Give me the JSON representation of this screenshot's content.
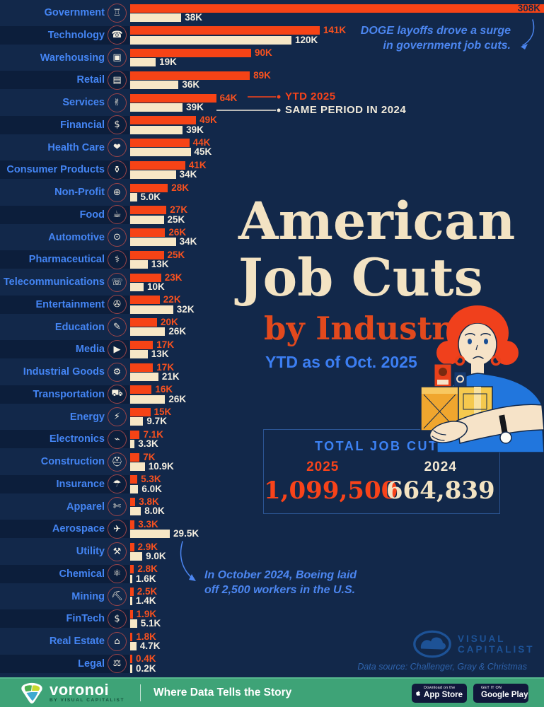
{
  "chart_data": {
    "type": "bar",
    "title": "American Job Cuts by Industry",
    "subtitle": "YTD as of Oct. 2025",
    "unit": "job cuts (thousands)",
    "orientation": "horizontal",
    "series_names": [
      "YTD 2025",
      "Same period in 2024"
    ],
    "rows": [
      {
        "label": "Government",
        "icon_name": "bank-building-icon",
        "glyph": "♖",
        "v2025": 308,
        "l2025": "308K",
        "v2024": 38,
        "l2024": "38K",
        "inside2025": true
      },
      {
        "label": "Technology",
        "icon_name": "smartphone-icon",
        "glyph": "☎",
        "v2025": 141,
        "l2025": "141K",
        "v2024": 120,
        "l2024": "120K"
      },
      {
        "label": "Warehousing",
        "icon_name": "open-box-icon",
        "glyph": "▣",
        "v2025": 90,
        "l2025": "90K",
        "v2024": 19,
        "l2024": "19K"
      },
      {
        "label": "Retail",
        "icon_name": "shopping-cart-icon",
        "glyph": "▤",
        "v2025": 89,
        "l2025": "89K",
        "v2024": 36,
        "l2024": "36K"
      },
      {
        "label": "Services",
        "icon_name": "helping-hand-icon",
        "glyph": "✌",
        "v2025": 64,
        "l2025": "64K",
        "v2024": 39,
        "l2024": "39K"
      },
      {
        "label": "Financial",
        "icon_name": "dollar-coin-icon",
        "glyph": "$",
        "v2025": 49,
        "l2025": "49K",
        "v2024": 39,
        "l2024": "39K"
      },
      {
        "label": "Health Care",
        "icon_name": "heart-cross-icon",
        "glyph": "❤",
        "v2025": 44,
        "l2025": "44K",
        "v2024": 45,
        "l2024": "45K"
      },
      {
        "label": "Consumer Products",
        "icon_name": "shopping-bag-icon",
        "glyph": "⚱",
        "v2025": 41,
        "l2025": "41K",
        "v2024": 34,
        "l2024": "34K"
      },
      {
        "label": "Non-Profit",
        "icon_name": "globe-icon",
        "glyph": "⊕",
        "v2025": 28,
        "l2025": "28K",
        "v2024": 5.0,
        "l2024": "5.0K"
      },
      {
        "label": "Food",
        "icon_name": "cutlery-icon",
        "glyph": "☕",
        "v2025": 27,
        "l2025": "27K",
        "v2024": 25,
        "l2024": "25K"
      },
      {
        "label": "Automotive",
        "icon_name": "car-icon",
        "glyph": "⊙",
        "v2025": 26,
        "l2025": "26K",
        "v2024": 34,
        "l2024": "34K"
      },
      {
        "label": "Pharmaceutical",
        "icon_name": "pill-icon",
        "glyph": "⚕",
        "v2025": 25,
        "l2025": "25K",
        "v2024": 13,
        "l2024": "13K"
      },
      {
        "label": "Telecommunications",
        "icon_name": "headset-icon",
        "glyph": "☏",
        "v2025": 23,
        "l2025": "23K",
        "v2024": 10,
        "l2024": "10K"
      },
      {
        "label": "Entertainment",
        "icon_name": "movie-camera-icon",
        "glyph": "✇",
        "v2025": 22,
        "l2025": "22K",
        "v2024": 32,
        "l2024": "32K"
      },
      {
        "label": "Education",
        "icon_name": "graduation-cap-icon",
        "glyph": "✎",
        "v2025": 20,
        "l2025": "20K",
        "v2024": 26,
        "l2024": "26K"
      },
      {
        "label": "Media",
        "icon_name": "play-button-icon",
        "glyph": "▶",
        "v2025": 17,
        "l2025": "17K",
        "v2024": 13,
        "l2024": "13K"
      },
      {
        "label": "Industrial Goods",
        "icon_name": "factory-icon",
        "glyph": "⚙",
        "v2025": 17,
        "l2025": "17K",
        "v2024": 21,
        "l2024": "21K"
      },
      {
        "label": "Transportation",
        "icon_name": "truck-icon",
        "glyph": "⛟",
        "v2025": 16,
        "l2025": "16K",
        "v2024": 26,
        "l2024": "26K"
      },
      {
        "label": "Energy",
        "icon_name": "lightning-icon",
        "glyph": "⚡",
        "v2025": 15,
        "l2025": "15K",
        "v2024": 9.7,
        "l2024": "9.7K"
      },
      {
        "label": "Electronics",
        "icon_name": "plug-icon",
        "glyph": "⌁",
        "v2025": 7.1,
        "l2025": "7.1K",
        "v2024": 3.3,
        "l2024": "3.3K"
      },
      {
        "label": "Construction",
        "icon_name": "hard-hat-icon",
        "glyph": "⛑",
        "v2025": 7,
        "l2025": "7K",
        "v2024": 10.9,
        "l2024": "10.9K"
      },
      {
        "label": "Insurance",
        "icon_name": "shield-check-icon",
        "glyph": "☂",
        "v2025": 5.3,
        "l2025": "5.3K",
        "v2024": 6.0,
        "l2024": "6.0K"
      },
      {
        "label": "Apparel",
        "icon_name": "tshirt-icon",
        "glyph": "✄",
        "v2025": 3.8,
        "l2025": "3.8K",
        "v2024": 8.0,
        "l2024": "8.0K"
      },
      {
        "label": "Aerospace",
        "icon_name": "airplane-icon",
        "glyph": "✈",
        "v2025": 3.3,
        "l2025": "3.3K",
        "v2024": 29.5,
        "l2024": "29.5K"
      },
      {
        "label": "Utility",
        "icon_name": "crossed-tools-icon",
        "glyph": "⚒",
        "v2025": 2.9,
        "l2025": "2.9K",
        "v2024": 9.0,
        "l2024": "9.0K"
      },
      {
        "label": "Chemical",
        "icon_name": "molecule-icon",
        "glyph": "⚛",
        "v2025": 2.8,
        "l2025": "2.8K",
        "v2024": 1.6,
        "l2024": "1.6K"
      },
      {
        "label": "Mining",
        "icon_name": "pickaxe-icon",
        "glyph": "⛏",
        "v2025": 2.5,
        "l2025": "2.5K",
        "v2024": 1.4,
        "l2024": "1.4K"
      },
      {
        "label": "FinTech",
        "icon_name": "dollar-bill-icon",
        "glyph": "$",
        "v2025": 1.9,
        "l2025": "1.9K",
        "v2024": 5.1,
        "l2024": "5.1K"
      },
      {
        "label": "Real Estate",
        "icon_name": "house-icon",
        "glyph": "⌂",
        "v2025": 1.8,
        "l2025": "1.8K",
        "v2024": 4.7,
        "l2024": "4.7K"
      },
      {
        "label": "Legal",
        "icon_name": "gavel-icon",
        "glyph": "⚖",
        "v2025": 0.4,
        "l2025": "0.4K",
        "v2024": 0.2,
        "l2024": "0.2K"
      }
    ]
  },
  "title": {
    "line1": "American",
    "line2": "Job Cuts",
    "sub": "by Industry",
    "date": "YTD as of Oct. 2025"
  },
  "legend": {
    "y2025": "YTD 2025",
    "y2024": "SAME PERIOD IN 2024"
  },
  "annotations": {
    "doge_line1": "DOGE layoffs drove a surge",
    "doge_line2": "in government job cuts.",
    "boeing_line1": "In October 2024, Boeing laid",
    "boeing_line2": "off 2,500 workers in the U.S."
  },
  "totals": {
    "heading": "TOTAL JOB CUTS",
    "y2025_label": "2025",
    "y2025_value": "1,099,500",
    "y2024_label": "2024",
    "y2024_value": "664,839"
  },
  "vc": {
    "name_line1": "VISUAL",
    "name_line2": "CAPITALIST",
    "datasource": "Data source: Challenger, Gray & Christmas"
  },
  "footer": {
    "brand": "voronoi",
    "brand_sub": "BY VISUAL CAPITALIST",
    "tagline": "Where Data Tells the Story",
    "appstore_line1": "Download on the",
    "appstore_line2": "App Store",
    "gplay_line1": "GET IT ON",
    "gplay_line2": "Google Play"
  },
  "colors": {
    "background": "#12284A",
    "bar_2025": "#F64316",
    "bar_2024": "#F7E7C6",
    "label_blue": "#4485F4",
    "annotation_blue": "#4C86F0",
    "footer_green": "#3EA377"
  }
}
